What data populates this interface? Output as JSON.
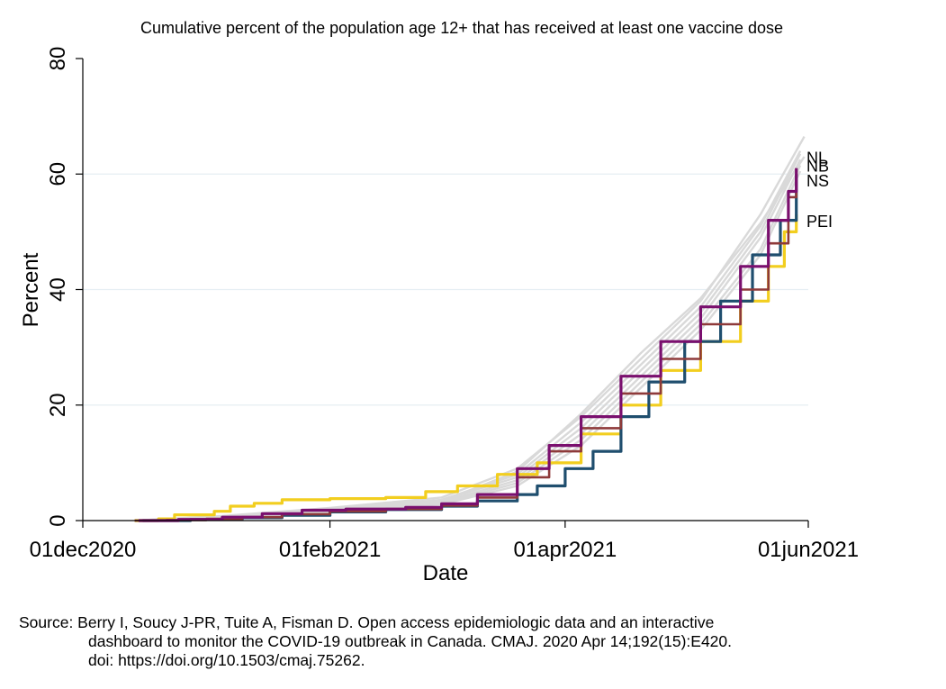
{
  "chart_data": {
    "type": "line",
    "title": "Cumulative percent of the population age 12+ that has received at least one vaccine dose",
    "xlabel": "Date",
    "ylabel": "Percent",
    "xlim": [
      "2020-12-01",
      "2021-06-01"
    ],
    "ylim": [
      0,
      80
    ],
    "x_ticks": [
      {
        "date": "2020-12-01",
        "label": "01dec2020"
      },
      {
        "date": "2021-02-01",
        "label": "01feb2021"
      },
      {
        "date": "2021-04-01",
        "label": "01apr2021"
      },
      {
        "date": "2021-06-01",
        "label": "01jun2021"
      }
    ],
    "y_ticks": [
      0,
      20,
      40,
      60,
      80
    ],
    "gridlines": [
      20,
      40,
      60
    ],
    "highlighted_series": [
      {
        "name": "NL",
        "color": "#8E3A3A",
        "width": 2.6,
        "points": [
          [
            "2020-12-14",
            0
          ],
          [
            "2020-12-22",
            0.1
          ],
          [
            "2021-01-01",
            0.3
          ],
          [
            "2021-01-10",
            0.6
          ],
          [
            "2021-01-20",
            1.1
          ],
          [
            "2021-02-01",
            1.6
          ],
          [
            "2021-02-15",
            2.0
          ],
          [
            "2021-03-01",
            2.6
          ],
          [
            "2021-03-10",
            4.0
          ],
          [
            "2021-03-20",
            7.5
          ],
          [
            "2021-03-28",
            12.0
          ],
          [
            "2021-04-05",
            16.0
          ],
          [
            "2021-04-15",
            22.0
          ],
          [
            "2021-04-25",
            28.0
          ],
          [
            "2021-05-05",
            34.0
          ],
          [
            "2021-05-15",
            40.0
          ],
          [
            "2021-05-22",
            48.0
          ],
          [
            "2021-05-27",
            56.0
          ],
          [
            "2021-05-29",
            61.0
          ]
        ]
      },
      {
        "name": "NB",
        "color": "#7A0F6E",
        "width": 3.2,
        "points": [
          [
            "2020-12-15",
            0
          ],
          [
            "2020-12-25",
            0.2
          ],
          [
            "2021-01-05",
            0.6
          ],
          [
            "2021-01-15",
            1.2
          ],
          [
            "2021-01-25",
            1.8
          ],
          [
            "2021-02-05",
            2.0
          ],
          [
            "2021-02-20",
            2.3
          ],
          [
            "2021-03-01",
            2.9
          ],
          [
            "2021-03-10",
            4.5
          ],
          [
            "2021-03-20",
            9.0
          ],
          [
            "2021-03-28",
            13.0
          ],
          [
            "2021-04-05",
            18.0
          ],
          [
            "2021-04-15",
            25.0
          ],
          [
            "2021-04-25",
            31.0
          ],
          [
            "2021-05-05",
            37.0
          ],
          [
            "2021-05-15",
            44.0
          ],
          [
            "2021-05-22",
            52.0
          ],
          [
            "2021-05-27",
            57.0
          ],
          [
            "2021-05-29",
            61.0
          ]
        ]
      },
      {
        "name": "NS",
        "color": "#1F4E6E",
        "width": 3.2,
        "points": [
          [
            "2020-12-16",
            0
          ],
          [
            "2020-12-28",
            0.2
          ],
          [
            "2021-01-10",
            0.5
          ],
          [
            "2021-01-20",
            0.9
          ],
          [
            "2021-02-01",
            1.5
          ],
          [
            "2021-02-15",
            1.9
          ],
          [
            "2021-03-01",
            2.5
          ],
          [
            "2021-03-10",
            3.4
          ],
          [
            "2021-03-20",
            4.5
          ],
          [
            "2021-03-25",
            6.0
          ],
          [
            "2021-04-01",
            9.0
          ],
          [
            "2021-04-08",
            12.0
          ],
          [
            "2021-04-15",
            18.0
          ],
          [
            "2021-04-22",
            24.0
          ],
          [
            "2021-05-01",
            31.0
          ],
          [
            "2021-05-10",
            38.0
          ],
          [
            "2021-05-18",
            46.0
          ],
          [
            "2021-05-25",
            52.0
          ],
          [
            "2021-05-29",
            60.0
          ]
        ]
      },
      {
        "name": "PEI",
        "color": "#F2CE1F",
        "width": 3.2,
        "points": [
          [
            "2020-12-14",
            0
          ],
          [
            "2020-12-20",
            0.3
          ],
          [
            "2020-12-24",
            1.0
          ],
          [
            "2021-01-03",
            1.6
          ],
          [
            "2021-01-07",
            2.5
          ],
          [
            "2021-01-13",
            3.0
          ],
          [
            "2021-01-20",
            3.6
          ],
          [
            "2021-02-01",
            3.8
          ],
          [
            "2021-02-15",
            4.0
          ],
          [
            "2021-02-25",
            5.0
          ],
          [
            "2021-03-05",
            6.0
          ],
          [
            "2021-03-15",
            8.0
          ],
          [
            "2021-03-25",
            10.0
          ],
          [
            "2021-04-05",
            15.0
          ],
          [
            "2021-04-15",
            20.0
          ],
          [
            "2021-04-25",
            26.0
          ],
          [
            "2021-05-05",
            31.0
          ],
          [
            "2021-05-15",
            38.0
          ],
          [
            "2021-05-22",
            44.0
          ],
          [
            "2021-05-26",
            50.0
          ],
          [
            "2021-05-29",
            53.0
          ]
        ]
      }
    ],
    "series_labels": [
      {
        "name": "NL",
        "text": "NL",
        "y": 62.8
      },
      {
        "name": "NB",
        "text": "NB",
        "y": 61.4
      },
      {
        "name": "NS",
        "text": "NS",
        "y": 58.8
      },
      {
        "name": "PEI",
        "text": "PEI",
        "y": 51.8
      }
    ],
    "background_series": {
      "color": "#d9d9d9",
      "width": 2.4,
      "note": "other provinces and territories",
      "lines": [
        [
          [
            "2020-12-14",
            0
          ],
          [
            "2021-01-05",
            0.8
          ],
          [
            "2021-02-01",
            2.2
          ],
          [
            "2021-03-01",
            4.0
          ],
          [
            "2021-03-20",
            9.0
          ],
          [
            "2021-04-05",
            18.0
          ],
          [
            "2021-04-20",
            28.0
          ],
          [
            "2021-05-05",
            38.0
          ],
          [
            "2021-05-20",
            53.0
          ],
          [
            "2021-05-31",
            66.5
          ]
        ],
        [
          [
            "2020-12-14",
            0
          ],
          [
            "2021-01-05",
            0.7
          ],
          [
            "2021-02-01",
            2.0
          ],
          [
            "2021-03-01",
            3.6
          ],
          [
            "2021-03-20",
            8.0
          ],
          [
            "2021-04-05",
            17.0
          ],
          [
            "2021-04-20",
            27.0
          ],
          [
            "2021-05-05",
            37.0
          ],
          [
            "2021-05-20",
            51.0
          ],
          [
            "2021-05-30",
            64.0
          ]
        ],
        [
          [
            "2020-12-14",
            0
          ],
          [
            "2021-01-05",
            0.5
          ],
          [
            "2021-02-01",
            1.8
          ],
          [
            "2021-03-01",
            3.2
          ],
          [
            "2021-03-20",
            7.0
          ],
          [
            "2021-04-05",
            15.0
          ],
          [
            "2021-04-20",
            25.0
          ],
          [
            "2021-05-05",
            35.0
          ],
          [
            "2021-05-20",
            49.0
          ],
          [
            "2021-05-30",
            62.5
          ]
        ],
        [
          [
            "2020-12-14",
            0
          ],
          [
            "2021-01-05",
            0.6
          ],
          [
            "2021-02-01",
            1.9
          ],
          [
            "2021-03-01",
            3.5
          ],
          [
            "2021-03-20",
            7.5
          ],
          [
            "2021-04-05",
            16.0
          ],
          [
            "2021-04-20",
            26.0
          ],
          [
            "2021-05-05",
            36.0
          ],
          [
            "2021-05-20",
            50.0
          ],
          [
            "2021-05-30",
            63.5
          ]
        ],
        [
          [
            "2020-12-14",
            0
          ],
          [
            "2021-01-05",
            0.4
          ],
          [
            "2021-02-01",
            1.6
          ],
          [
            "2021-03-01",
            3.0
          ],
          [
            "2021-03-20",
            6.5
          ],
          [
            "2021-04-05",
            14.0
          ],
          [
            "2021-04-20",
            24.0
          ],
          [
            "2021-05-05",
            34.0
          ],
          [
            "2021-05-20",
            47.0
          ],
          [
            "2021-05-30",
            61.5
          ]
        ],
        [
          [
            "2020-12-14",
            0
          ],
          [
            "2021-01-05",
            0.5
          ],
          [
            "2021-02-01",
            1.7
          ],
          [
            "2021-03-01",
            3.3
          ],
          [
            "2021-03-20",
            8.5
          ],
          [
            "2021-04-05",
            18.5
          ],
          [
            "2021-04-20",
            29.0
          ],
          [
            "2021-05-05",
            38.5
          ],
          [
            "2021-05-20",
            51.5
          ],
          [
            "2021-05-31",
            63.0
          ]
        ],
        [
          [
            "2020-12-14",
            0
          ],
          [
            "2021-01-05",
            0.3
          ],
          [
            "2021-02-01",
            1.4
          ],
          [
            "2021-03-01",
            2.8
          ],
          [
            "2021-03-20",
            6.0
          ],
          [
            "2021-04-05",
            13.0
          ],
          [
            "2021-04-20",
            23.0
          ],
          [
            "2021-05-05",
            33.0
          ],
          [
            "2021-05-20",
            46.0
          ],
          [
            "2021-05-30",
            60.5
          ]
        ]
      ]
    }
  },
  "source_note": {
    "line1": "Source: Berry I, Soucy J-PR, Tuite A, Fisman D. Open access epidemiologic data and an interactive",
    "line2": "dashboard to monitor the COVID-19 outbreak in Canada. CMAJ. 2020 Apr 14;192(15):E420.",
    "line3": "doi: https://doi.org/10.1503/cmaj.75262."
  }
}
